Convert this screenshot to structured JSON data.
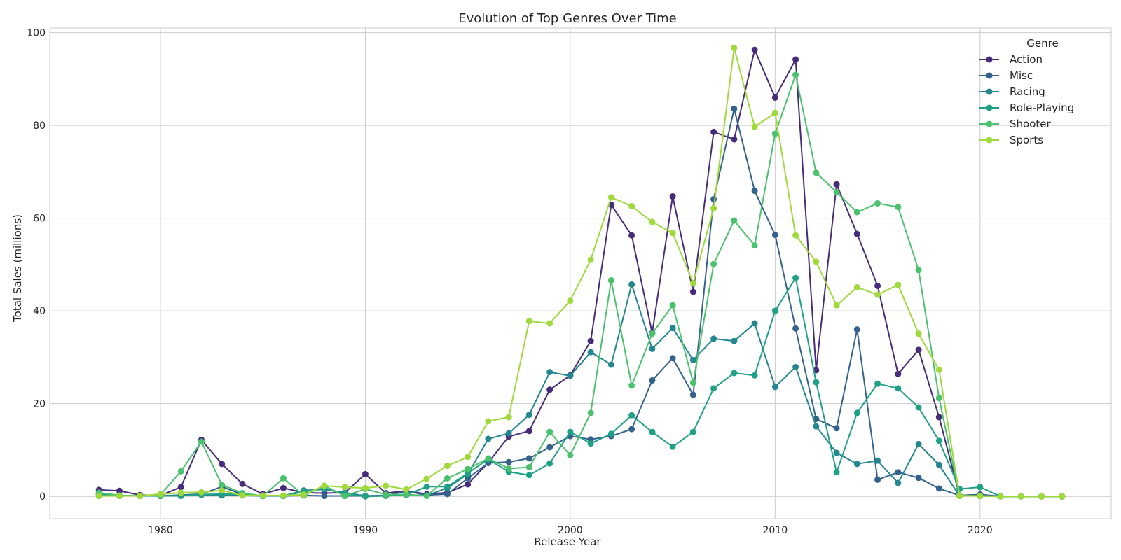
{
  "chart_data": {
    "type": "line",
    "title": "Evolution of Top Genres Over Time",
    "xlabel": "Release Year",
    "ylabel": "Total Sales (millions)",
    "xlim": [
      1974.6,
      2026.4
    ],
    "ylim": [
      -4.8,
      101
    ],
    "xticks": [
      1980,
      1990,
      2000,
      2010,
      2020
    ],
    "yticks": [
      0,
      20,
      40,
      60,
      80,
      100
    ],
    "grid": true,
    "legend": {
      "title": "Genre",
      "placement": "top-right"
    },
    "x": [
      1977,
      1978,
      1979,
      1980,
      1981,
      1982,
      1983,
      1984,
      1985,
      1986,
      1987,
      1988,
      1989,
      1990,
      1991,
      1992,
      1993,
      1994,
      1995,
      1996,
      1997,
      1998,
      1999,
      2000,
      2001,
      2002,
      2003,
      2004,
      2005,
      2006,
      2007,
      2008,
      2009,
      2010,
      2011,
      2012,
      2013,
      2014,
      2015,
      2016,
      2017,
      2018,
      2019,
      2020,
      2021,
      2022,
      2023,
      2024
    ],
    "series": [
      {
        "name": "Action",
        "color": "#472c7a",
        "values": [
          1.4,
          1.2,
          0.3,
          0.2,
          2.0,
          12.2,
          7.0,
          2.7,
          0.5,
          1.8,
          0.8,
          0.7,
          0.8,
          4.8,
          0.7,
          1.2,
          0.5,
          0.8,
          2.6,
          7.3,
          12.9,
          14.1,
          23.0,
          26.1,
          33.5,
          62.9,
          56.3,
          35.2,
          64.7,
          44.1,
          78.6,
          77.0,
          96.3,
          86.0,
          94.2,
          27.2,
          67.3,
          56.6,
          45.4,
          26.4,
          31.6,
          17.1,
          0.2,
          0.4,
          0,
          0,
          0,
          0
        ]
      },
      {
        "name": "Misc",
        "color": "#33628d",
        "values": [
          0.4,
          0.2,
          0.1,
          0.1,
          0.3,
          0.5,
          2.1,
          0.4,
          0.1,
          0.1,
          0.2,
          0.1,
          0.1,
          0.1,
          0.2,
          1.1,
          0.3,
          0.5,
          3.9,
          7.2,
          7.4,
          8.2,
          10.6,
          13.0,
          12.3,
          13.0,
          14.5,
          25.0,
          29.8,
          21.9,
          64.1,
          83.6,
          65.9,
          56.4,
          36.2,
          16.7,
          14.7,
          36.0,
          3.6,
          5.2,
          4.0,
          1.7,
          0.2,
          0.4,
          0,
          0,
          0,
          0
        ]
      },
      {
        "name": "Racing",
        "color": "#24868e",
        "values": [
          0.1,
          0.1,
          0.1,
          0.1,
          0.2,
          0.3,
          0.2,
          0.2,
          0.1,
          0.1,
          1.3,
          1.5,
          0.8,
          0.1,
          0.2,
          0.3,
          0.2,
          1.8,
          4.8,
          12.4,
          13.6,
          17.6,
          26.8,
          26.0,
          31.1,
          28.4,
          45.7,
          31.8,
          36.3,
          29.4,
          34.0,
          33.5,
          37.3,
          23.6,
          27.9,
          15.1,
          9.4,
          7.0,
          7.7,
          2.9,
          11.3,
          6.8,
          0.1,
          0.1,
          0,
          0,
          0,
          0
        ]
      },
      {
        "name": "Role-Playing",
        "color": "#1fa187",
        "values": [
          0.5,
          0.2,
          0.1,
          0.1,
          0.1,
          0.4,
          0.5,
          0.5,
          0.1,
          0.1,
          1.0,
          1.8,
          0.4,
          0.0,
          0.1,
          0.3,
          2.1,
          2.1,
          5.0,
          8.0,
          5.3,
          4.6,
          7.1,
          13.9,
          11.4,
          13.5,
          17.5,
          13.9,
          10.7,
          13.9,
          23.3,
          26.6,
          26.1,
          40.0,
          47.1,
          24.6,
          5.2,
          18.0,
          24.3,
          23.3,
          19.2,
          12.0,
          1.6,
          2.0,
          0,
          0,
          0,
          0
        ]
      },
      {
        "name": "Shooter",
        "color": "#4ac16d",
        "values": [
          0.8,
          0.2,
          0.1,
          0.3,
          5.4,
          11.8,
          2.5,
          0.7,
          0.1,
          3.9,
          0.2,
          2.3,
          0.1,
          1.6,
          0.4,
          0.4,
          0.1,
          3.9,
          5.9,
          8.2,
          6.0,
          6.3,
          13.9,
          8.9,
          18.0,
          46.6,
          23.9,
          35.1,
          41.2,
          24.5,
          50.1,
          59.5,
          54.1,
          78.2,
          90.9,
          69.8,
          65.6,
          61.3,
          63.2,
          62.4,
          48.8,
          21.2,
          0.2,
          0.1,
          0,
          0,
          0,
          0
        ]
      },
      {
        "name": "Sports",
        "color": "#9fda3a",
        "values": [
          0.1,
          0.1,
          0.1,
          0.5,
          0.8,
          0.9,
          1.3,
          0.2,
          0.2,
          0.2,
          0.4,
          2.3,
          2.0,
          1.8,
          2.3,
          1.5,
          3.8,
          6.6,
          8.5,
          16.2,
          17.1,
          37.8,
          37.3,
          42.2,
          51.0,
          64.5,
          62.6,
          59.2,
          56.8,
          46.0,
          62.1,
          96.7,
          79.7,
          82.7,
          56.3,
          50.6,
          41.2,
          45.1,
          43.5,
          45.6,
          35.1,
          27.3,
          0.1,
          0.1,
          0,
          0,
          0,
          0
        ]
      }
    ]
  }
}
